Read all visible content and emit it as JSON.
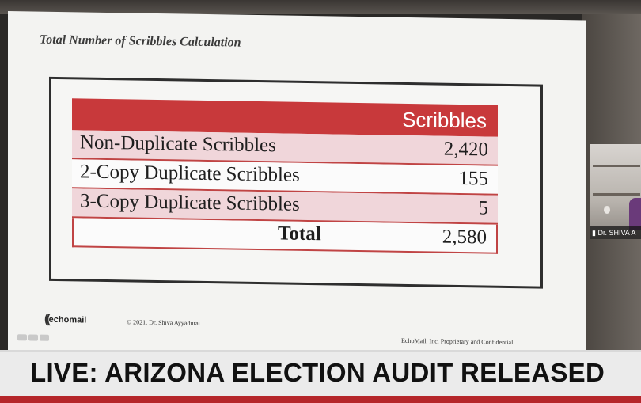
{
  "slide": {
    "title": "Total Number of Scribbles Calculation",
    "table": {
      "header": "Scribbles",
      "rows": [
        {
          "label": "Non-Duplicate Scribbles",
          "value": "2,420"
        },
        {
          "label": "2-Copy Duplicate Scribbles",
          "value": "155"
        },
        {
          "label": "3-Copy Duplicate Scribbles",
          "value": "5"
        }
      ],
      "total": {
        "label": "Total",
        "value": "2,580"
      }
    },
    "footer": {
      "logo": "echomail",
      "copyright": "© 2021. Dr. Shiva Ayyadurai.",
      "confidential": "EchoMail, Inc. Proprietary and Confidential."
    }
  },
  "webcam": {
    "name": "Dr. SHIVA A"
  },
  "ticker": {
    "headline": "LIVE: ARIZONA ELECTION AUDIT RELEASED"
  },
  "colors": {
    "table_header": "#c8393b",
    "row_pink": "#f0d6da",
    "ticker_bar": "#b5262a"
  }
}
